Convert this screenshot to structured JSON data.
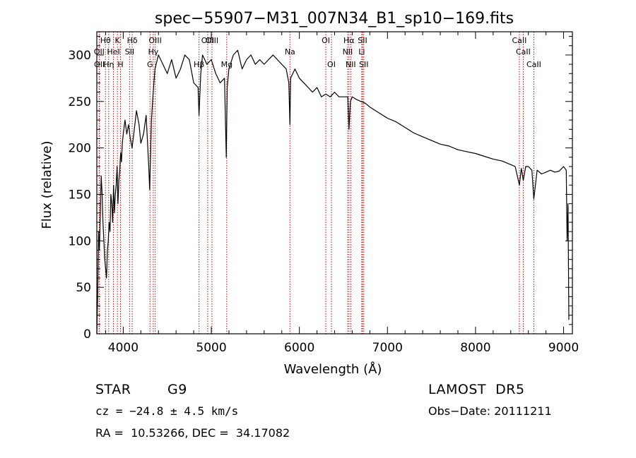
{
  "chart_data": {
    "type": "line",
    "title": "spec−55907−M31_007N34_B1_sp10−169.fits",
    "xlabel": "Wavelength (Å)",
    "ylabel": "Flux (relative)",
    "xlim": [
      3700,
      9100
    ],
    "ylim": [
      0,
      325
    ],
    "x_ticks": [
      4000,
      5000,
      6000,
      7000,
      8000,
      9000
    ],
    "y_ticks": [
      0,
      50,
      100,
      150,
      200,
      250,
      300
    ],
    "grid": false,
    "line_color": "#000000",
    "marker_color": "#cc0000",
    "series": [
      {
        "x": [
          3700,
          3710,
          3720,
          3730,
          3740,
          3750,
          3760,
          3770,
          3780,
          3790,
          3800,
          3810,
          3820,
          3830,
          3840,
          3850,
          3860,
          3870,
          3880,
          3890,
          3900,
          3910,
          3920,
          3930,
          3940,
          3950,
          3960,
          3970,
          3980,
          3990,
          4000,
          4020,
          4040,
          4060,
          4080,
          4100,
          4120,
          4150,
          4180,
          4200,
          4230,
          4260,
          4290,
          4300,
          4310,
          4320,
          4340,
          4360,
          4400,
          4450,
          4500,
          4550,
          4600,
          4650,
          4700,
          4750,
          4800,
          4850,
          4860,
          4880,
          4900,
          4950,
          5000,
          5050,
          5100,
          5150,
          5170,
          5180,
          5200,
          5250,
          5300,
          5350,
          5400,
          5450,
          5500,
          5550,
          5600,
          5650,
          5700,
          5750,
          5800,
          5850,
          5880,
          5893,
          5900,
          5950,
          6000,
          6050,
          6100,
          6150,
          6200,
          6250,
          6300,
          6350,
          6400,
          6450,
          6500,
          6550,
          6563,
          6580,
          6600,
          6650,
          6700,
          6750,
          6800,
          6900,
          7000,
          7100,
          7200,
          7300,
          7400,
          7500,
          7600,
          7700,
          7800,
          7900,
          8000,
          8100,
          8200,
          8300,
          8400,
          8450,
          8498,
          8520,
          8542,
          8570,
          8600,
          8640,
          8662,
          8700,
          8750,
          8800,
          8850,
          8900,
          8950,
          9000,
          9030,
          9040,
          9050,
          9060
        ],
        "y": [
          0,
          40,
          110,
          90,
          130,
          170,
          150,
          120,
          100,
          80,
          70,
          60,
          90,
          100,
          120,
          110,
          150,
          140,
          120,
          160,
          130,
          150,
          160,
          180,
          140,
          165,
          175,
          195,
          185,
          205,
          215,
          230,
          215,
          225,
          210,
          200,
          215,
          240,
          225,
          205,
          215,
          235,
          180,
          155,
          190,
          230,
          260,
          285,
          300,
          290,
          280,
          295,
          275,
          285,
          300,
          295,
          270,
          265,
          235,
          280,
          300,
          290,
          295,
          280,
          270,
          275,
          190,
          265,
          285,
          300,
          305,
          285,
          295,
          300,
          290,
          295,
          290,
          295,
          300,
          295,
          290,
          285,
          270,
          225,
          275,
          285,
          275,
          270,
          265,
          260,
          265,
          255,
          258,
          255,
          260,
          255,
          255,
          255,
          220,
          250,
          255,
          252,
          250,
          248,
          244,
          238,
          232,
          228,
          222,
          216,
          212,
          208,
          204,
          202,
          198,
          196,
          194,
          191,
          188,
          186,
          182,
          180,
          160,
          178,
          165,
          180,
          180,
          176,
          145,
          176,
          172,
          174,
          176,
          174,
          175,
          180,
          176,
          100,
          140,
          15
        ]
      }
    ],
    "line_markers": [
      {
        "name": "Hθ",
        "wavelength": 3798,
        "row": 0
      },
      {
        "name": "K",
        "wavelength": 3934,
        "row": 0
      },
      {
        "name": "Hδ",
        "wavelength": 4102,
        "row": 0
      },
      {
        "name": "OII",
        "wavelength": 3727,
        "row": 1
      },
      {
        "name": "HeI",
        "wavelength": 3889,
        "row": 1
      },
      {
        "name": "SII",
        "wavelength": 4072,
        "row": 1
      },
      {
        "name": "OII",
        "wavelength": 3729,
        "row": 2
      },
      {
        "name": "Hη",
        "wavelength": 3835,
        "row": 2
      },
      {
        "name": "H",
        "wavelength": 3969,
        "row": 2
      },
      {
        "name": "OIII",
        "wavelength": 4363,
        "row": 0
      },
      {
        "name": "Hγ",
        "wavelength": 4341,
        "row": 1
      },
      {
        "name": "G",
        "wavelength": 4304,
        "row": 2
      },
      {
        "name": "OIII",
        "wavelength": 4959,
        "row": 0
      },
      {
        "name": "OIII",
        "wavelength": 5007,
        "row": 0
      },
      {
        "name": "Hβ",
        "wavelength": 4861,
        "row": 2
      },
      {
        "name": "Mg",
        "wavelength": 5175,
        "row": 2
      },
      {
        "name": "Na",
        "wavelength": 5893,
        "row": 1
      },
      {
        "name": "OI",
        "wavelength": 6300,
        "row": 0
      },
      {
        "name": "OI",
        "wavelength": 6364,
        "row": 2
      },
      {
        "name": "Hα",
        "wavelength": 6563,
        "row": 0
      },
      {
        "name": "NII",
        "wavelength": 6548,
        "row": 1
      },
      {
        "name": "NII",
        "wavelength": 6583,
        "row": 2
      },
      {
        "name": "SII",
        "wavelength": 6717,
        "row": 0
      },
      {
        "name": "Li",
        "wavelength": 6708,
        "row": 1
      },
      {
        "name": "SII",
        "wavelength": 6731,
        "row": 2
      },
      {
        "name": "CaII",
        "wavelength": 8498,
        "row": 0
      },
      {
        "name": "CaII",
        "wavelength": 8542,
        "row": 1
      },
      {
        "name": "CaII",
        "wavelength": 8662,
        "row": 2
      }
    ]
  },
  "footer": {
    "object_class": "STAR",
    "subclass": "G9",
    "survey": "LAMOST  DR5",
    "redshift_line": "cz = −24.8 ± 4.5 km/s",
    "obs_date": "Obs−Date: 20111211",
    "coords": "RA =  10.53266, DEC =  34.17082"
  }
}
